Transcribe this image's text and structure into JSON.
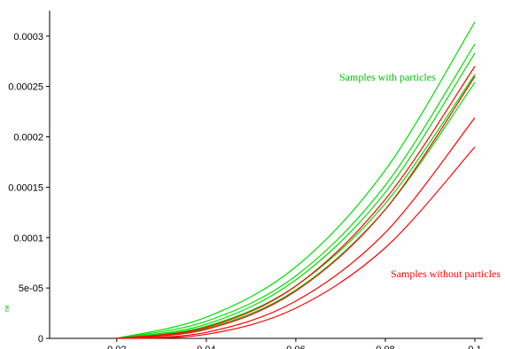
{
  "chart_data": {
    "type": "line",
    "title": "",
    "xlabel": "",
    "ylabel": "rw",
    "xlim": [
      0.005,
      0.1
    ],
    "ylim": [
      0,
      0.00032
    ],
    "grid": false,
    "x_ticks": [
      {
        "value": 0.02,
        "label": "0.02"
      },
      {
        "value": 0.04,
        "label": "0.04"
      },
      {
        "value": 0.06,
        "label": "0.06"
      },
      {
        "value": 0.08,
        "label": "0.08"
      },
      {
        "value": 0.1,
        "label": "0.1"
      }
    ],
    "y_ticks": [
      {
        "value": 0,
        "label": "0"
      },
      {
        "value": 5e-05,
        "label": "5e-05"
      },
      {
        "value": 0.0001,
        "label": "0.0001"
      },
      {
        "value": 0.00015,
        "label": "0.00015"
      },
      {
        "value": 0.0002,
        "label": "0.0002"
      },
      {
        "value": 0.00025,
        "label": "0.00025"
      },
      {
        "value": 0.0003,
        "label": "0.0003"
      }
    ],
    "series": [
      {
        "group": "with",
        "color": "#00e000",
        "x": [
          0.02,
          0.04,
          0.06,
          0.08,
          0.1
        ],
        "y": [
          0,
          2.1e-05,
          7.1e-05,
          0.000167,
          0.000314
        ]
      },
      {
        "group": "with",
        "color": "#00e000",
        "x": [
          0.02,
          0.04,
          0.06,
          0.08,
          0.1
        ],
        "y": [
          0,
          1.7e-05,
          6.2e-05,
          0.000152,
          0.000292
        ]
      },
      {
        "group": "with",
        "color": "#00e000",
        "x": [
          0.02,
          0.04,
          0.06,
          0.08,
          0.1
        ],
        "y": [
          0,
          1.4e-05,
          5.8e-05,
          0.000145,
          0.000283
        ]
      },
      {
        "group": "with",
        "color": "#00e000",
        "x": [
          0.02,
          0.04,
          0.06,
          0.08,
          0.1
        ],
        "y": [
          0,
          1.2e-05,
          5.2e-05,
          0.000134,
          0.000262
        ]
      },
      {
        "group": "with",
        "color": "#00e000",
        "x": [
          0.02,
          0.04,
          0.06,
          0.08,
          0.1
        ],
        "y": [
          0,
          1e-05,
          4.8e-05,
          0.000128,
          0.000254
        ]
      },
      {
        "group": "without",
        "color": "#ff0000",
        "x": [
          0.02,
          0.04,
          0.06,
          0.08,
          0.1
        ],
        "y": [
          0,
          1.1e-05,
          5.2e-05,
          0.000138,
          0.00027
        ]
      },
      {
        "group": "without",
        "color": "#ff0000",
        "x": [
          0.02,
          0.04,
          0.06,
          0.08,
          0.1
        ],
        "y": [
          0,
          9e-06,
          4.7e-05,
          0.000128,
          0.00026
        ]
      },
      {
        "group": "without",
        "color": "#ff0000",
        "x": [
          0.02,
          0.04,
          0.06,
          0.08,
          0.1
        ],
        "y": [
          0,
          6e-06,
          3.7e-05,
          0.000105,
          0.000219
        ]
      },
      {
        "group": "without",
        "color": "#ff0000",
        "x": [
          0.02,
          0.04,
          0.06,
          0.08,
          0.1
        ],
        "y": [
          0,
          4e-06,
          3e-05,
          9e-05,
          0.00019
        ]
      }
    ],
    "annotations": [
      {
        "text": "Samples with particles",
        "color": "#00c000"
      },
      {
        "text": "Samples without particles",
        "color": "#ff0000"
      }
    ],
    "ylabel_color": "#00c000"
  }
}
